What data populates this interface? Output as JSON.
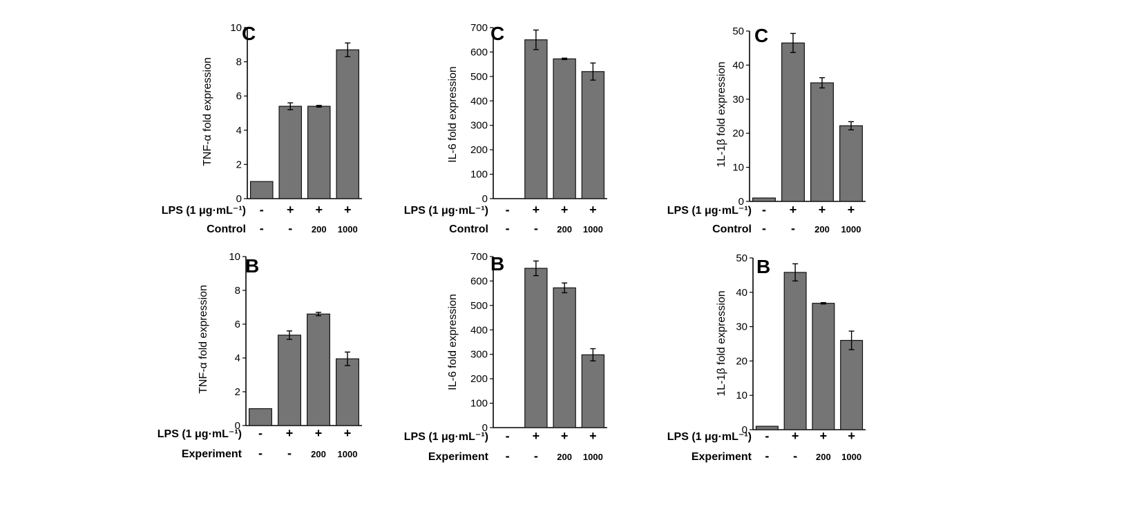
{
  "colors": {
    "bar": "#757575",
    "bar_edge": "#111111",
    "axis": "#000000",
    "text": "#000000"
  },
  "chart_data": [
    {
      "type": "bar",
      "panel": "C",
      "ylabel": "TNF-α fold expression",
      "ylim": [
        0,
        10
      ],
      "yticks": [
        "0",
        "2",
        "4",
        "6",
        "8",
        "10"
      ],
      "rows": [
        {
          "label": "LPS (1 μg·mL⁻¹)",
          "values": [
            "-",
            "+",
            "+",
            "+"
          ]
        },
        {
          "label": "Control",
          "values": [
            "-",
            "-",
            "200",
            "1000"
          ]
        }
      ],
      "values": [
        1.0,
        5.4,
        5.4,
        8.7
      ],
      "errors": [
        0,
        0.2,
        0.05,
        0.4
      ]
    },
    {
      "type": "bar",
      "panel": "C",
      "ylabel": "IL-6 fold expression",
      "ylim": [
        0,
        700
      ],
      "yticks": [
        "0",
        "100",
        "200",
        "300",
        "400",
        "500",
        "600",
        "700"
      ],
      "rows": [
        {
          "label": "LPS (1 μg·mL⁻¹)",
          "values": [
            "-",
            "+",
            "+",
            "+"
          ]
        },
        {
          "label": "Control",
          "values": [
            "-",
            "-",
            "200",
            "1000"
          ]
        }
      ],
      "values": [
        0,
        650,
        572,
        520
      ],
      "errors": [
        0,
        40,
        3,
        35
      ]
    },
    {
      "type": "bar",
      "panel": "C",
      "ylabel": "1L-1β fold expression",
      "ylim": [
        0,
        50
      ],
      "yticks": [
        "0",
        "10",
        "20",
        "30",
        "40",
        "50"
      ],
      "rows": [
        {
          "label": "LPS (1 μg·mL⁻¹)",
          "values": [
            "-",
            "+",
            "+",
            "+"
          ]
        },
        {
          "label": "Control",
          "values": [
            "-",
            "-",
            "200",
            "1000"
          ]
        }
      ],
      "values": [
        1.0,
        46.5,
        34.8,
        22.2
      ],
      "errors": [
        0,
        2.8,
        1.5,
        1.2
      ]
    },
    {
      "type": "bar",
      "panel": "B",
      "ylabel": "TNF-α fold expression",
      "ylim": [
        0,
        10
      ],
      "yticks": [
        "0",
        "2",
        "4",
        "6",
        "8",
        "10"
      ],
      "rows": [
        {
          "label": "LPS (1 μg·mL⁻¹)",
          "values": [
            "-",
            "+",
            "+",
            "+"
          ]
        },
        {
          "label": "Experiment",
          "values": [
            "-",
            "-",
            "200",
            "1000"
          ]
        }
      ],
      "values": [
        1.0,
        5.35,
        6.6,
        3.95
      ],
      "errors": [
        0,
        0.25,
        0.1,
        0.4
      ]
    },
    {
      "type": "bar",
      "panel": "B",
      "ylabel": "IL-6 fold expression",
      "ylim": [
        0,
        700
      ],
      "yticks": [
        "0",
        "100",
        "200",
        "300",
        "400",
        "500",
        "600",
        "700"
      ],
      "rows": [
        {
          "label": "LPS (1 μg·mL⁻¹)",
          "values": [
            "-",
            "+",
            "+",
            "+"
          ]
        },
        {
          "label": "Experiment",
          "values": [
            "-",
            "-",
            "200",
            "1000"
          ]
        }
      ],
      "values": [
        0,
        652,
        572,
        298
      ],
      "errors": [
        0,
        30,
        20,
        25
      ]
    },
    {
      "type": "bar",
      "panel": "B",
      "ylabel": "1L-1β fold expression",
      "ylim": [
        0,
        50
      ],
      "yticks": [
        "0",
        "10",
        "20",
        "30",
        "40",
        "50"
      ],
      "rows": [
        {
          "label": "LPS (1 μg·mL⁻¹)",
          "values": [
            "-",
            "+",
            "+",
            "+"
          ]
        },
        {
          "label": "Experiment",
          "values": [
            "-",
            "-",
            "200",
            "1000"
          ]
        }
      ],
      "values": [
        1.0,
        45.8,
        36.8,
        26.0
      ],
      "errors": [
        0,
        2.5,
        0.2,
        2.7
      ]
    }
  ]
}
